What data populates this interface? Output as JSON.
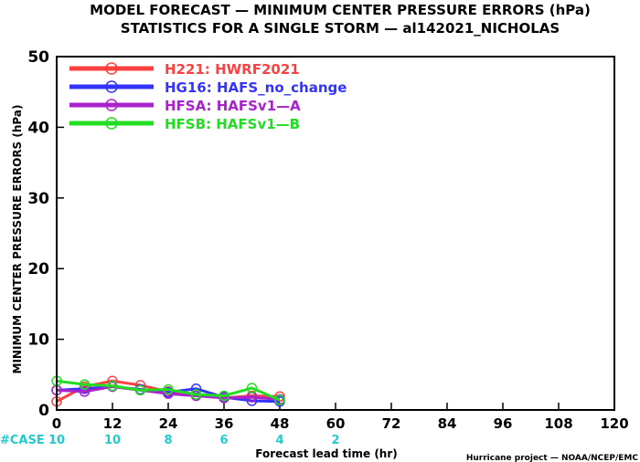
{
  "chart_data": {
    "type": "line",
    "title": "MODEL FORECAST — MINIMUM CENTER PRESSURE ERRORS (hPa)",
    "subtitle": "STATISTICS FOR A SINGLE STORM — al142021_NICHOLAS",
    "ylabel": "MINIMUM CENTER PRESSURE ERRORS (hPa)",
    "xlabel": "Forecast lead time (hr)",
    "xlim": [
      0,
      120
    ],
    "ylim": [
      0,
      50
    ],
    "xticks": [
      0,
      12,
      24,
      36,
      48,
      60,
      72,
      84,
      96,
      108,
      120
    ],
    "yticks": [
      0,
      10,
      20,
      30,
      40,
      50
    ],
    "x": [
      0,
      6,
      12,
      18,
      24,
      30,
      36,
      42,
      48
    ],
    "series": [
      {
        "name": "H221: HWRF2021",
        "color": "#ff4040",
        "values": [
          1.2,
          3.3,
          4.1,
          3.5,
          2.6,
          2.2,
          1.7,
          2.0,
          1.9
        ]
      },
      {
        "name": "HG16: HAFS_no_change",
        "color": "#3333ff",
        "values": [
          2.8,
          3.0,
          3.3,
          2.9,
          2.5,
          3.0,
          1.8,
          1.3,
          1.2
        ]
      },
      {
        "name": "HFSA: HAFSv1—A",
        "color": "#aa22cc",
        "values": [
          2.8,
          2.6,
          3.3,
          2.8,
          2.3,
          2.0,
          1.7,
          1.8,
          1.5
        ]
      },
      {
        "name": "HFSB: HAFSv1—B",
        "color": "#22dd22",
        "values": [
          4.1,
          3.6,
          3.4,
          2.8,
          2.9,
          2.2,
          2.0,
          3.1,
          1.4
        ]
      }
    ],
    "cases": {
      "label": "#CASE",
      "entries": [
        {
          "x": 0,
          "count": "10"
        },
        {
          "x": 12,
          "count": "10"
        },
        {
          "x": 24,
          "count": "8"
        },
        {
          "x": 36,
          "count": "6"
        },
        {
          "x": 48,
          "count": "4"
        },
        {
          "x": 60,
          "count": "2"
        }
      ]
    },
    "credit": "Hurricane project — NOAA/NCEP/EMC",
    "legend_position": "top-left",
    "grid": false
  },
  "colors": {
    "axis": "#000000",
    "case_text": "#22cccc"
  }
}
